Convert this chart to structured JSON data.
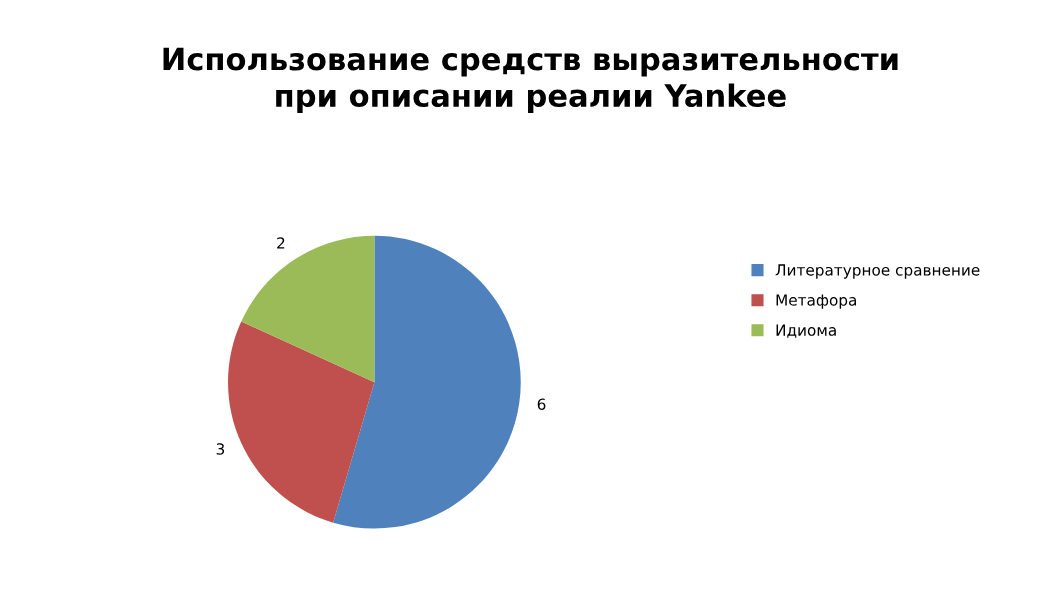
{
  "chart_data": {
    "type": "pie",
    "title": "Использование средств выразительности\nпри описании реалии Yankee",
    "categories": [
      "Литературное сравнение",
      "Метафора",
      "Идиома"
    ],
    "values": [
      6,
      3,
      2
    ],
    "colors": [
      "#4f81bd",
      "#c0504d",
      "#9bbb59"
    ],
    "data_labels": true,
    "legend": "right"
  }
}
